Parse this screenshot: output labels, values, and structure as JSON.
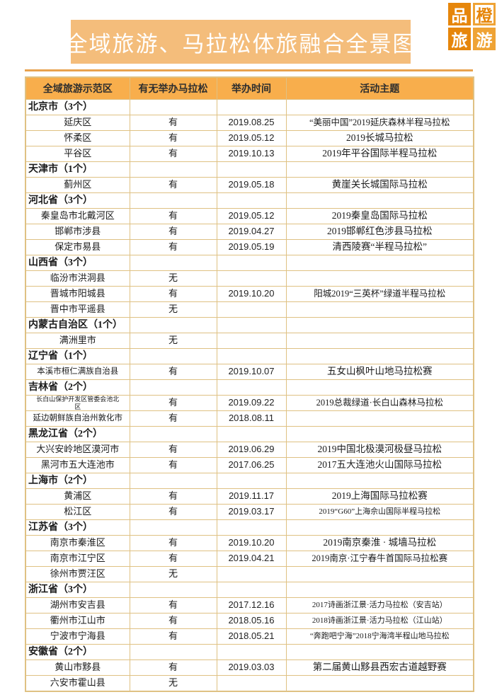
{
  "colors": {
    "banner": "#F4BD7B",
    "divider": "#E8A34F",
    "table_header": "#F8AE4C",
    "border": "#DFC183",
    "logo_dark": "#E6860B",
    "logo_light": "#EFA335"
  },
  "logo": {
    "tiles": [
      "品",
      "橙",
      "旅",
      "游"
    ]
  },
  "header": {
    "title": "全域旅游、马拉松体旅融合全景图"
  },
  "table": {
    "columns": [
      "全域旅游示范区",
      "有无举办马拉松",
      "举办时间",
      "活动主题"
    ],
    "groups": [
      {
        "label": "北京市（3个）",
        "rows": [
          {
            "area": "延庆区",
            "held": "有",
            "date": "2019.08.25",
            "theme": "“美丽中国”2019延庆森林半程马拉松"
          },
          {
            "area": "怀柔区",
            "held": "有",
            "date": "2019.05.12",
            "theme": "2019长城马拉松"
          },
          {
            "area": "平谷区",
            "held": "有",
            "date": "2019.10.13",
            "theme": "2019年平谷国际半程马拉松"
          }
        ]
      },
      {
        "label": "天津市（1个）",
        "rows": [
          {
            "area": "蓟州区",
            "held": "有",
            "date": "2019.05.18",
            "theme": "黄崖关长城国际马拉松"
          }
        ]
      },
      {
        "label": "河北省（3个）",
        "rows": [
          {
            "area": "秦皇岛市北戴河区",
            "held": "有",
            "date": "2019.05.12",
            "theme": "2019秦皇岛国际马拉松"
          },
          {
            "area": "邯郸市涉县",
            "held": "有",
            "date": "2019.04.27",
            "theme": "2019邯郸红色涉县马拉松"
          },
          {
            "area": "保定市易县",
            "held": "有",
            "date": "2019.05.19",
            "theme": "清西陵赛“半程马拉松”"
          }
        ]
      },
      {
        "label": "山西省（3个）",
        "rows": [
          {
            "area": "临汾市洪洞县",
            "held": "无",
            "date": "",
            "theme": ""
          },
          {
            "area": "晋城市阳城县",
            "held": "有",
            "date": "2019.10.20",
            "theme": "阳城2019“三英杯”绿道半程马拉松"
          },
          {
            "area": "晋中市平遥县",
            "held": "无",
            "date": "",
            "theme": ""
          }
        ]
      },
      {
        "label": "内蒙古自治区（1个）",
        "rows": [
          {
            "area": "满洲里市",
            "held": "无",
            "date": "",
            "theme": ""
          }
        ]
      },
      {
        "label": "辽宁省（1个）",
        "rows": [
          {
            "area": "本溪市桓仁满族自治县",
            "held": "有",
            "date": "2019.10.07",
            "theme": "五女山枫叶山地马拉松赛"
          }
        ]
      },
      {
        "label": "吉林省（2个）",
        "rows": [
          {
            "area": "长白山保护开发区管委会池北区",
            "held": "有",
            "date": "2019.09.22",
            "theme": "2019总裁绿道·长白山森林马拉松"
          },
          {
            "area": "延边朝鲜族自治州敦化市",
            "held": "有",
            "date": "2018.08.11",
            "theme": ""
          }
        ]
      },
      {
        "label": "黑龙江省（2个）",
        "rows": [
          {
            "area": "大兴安岭地区漠河市",
            "held": "有",
            "date": "2019.06.29",
            "theme": "2019中国北极漠河极昼马拉松"
          },
          {
            "area": "黑河市五大连池市",
            "held": "有",
            "date": "2017.06.25",
            "theme": "2017五大连池火山国际马拉松"
          }
        ]
      },
      {
        "label": "上海市（2个）",
        "rows": [
          {
            "area": "黄浦区",
            "held": "有",
            "date": "2019.11.17",
            "theme": "2019上海国际马拉松赛"
          },
          {
            "area": "松江区",
            "held": "有",
            "date": "2019.03.17",
            "theme": "2019“G60”上海佘山国际半程马拉松"
          }
        ]
      },
      {
        "label": "江苏省（3个）",
        "rows": [
          {
            "area": "南京市秦淮区",
            "held": "有",
            "date": "2019.10.20",
            "theme": "2019南京秦淮 · 城墙马拉松"
          },
          {
            "area": "南京市江宁区",
            "held": "有",
            "date": "2019.04.21",
            "theme": "2019南京·江宁春牛首国际马拉松赛"
          },
          {
            "area": "徐州市贾汪区",
            "held": "无",
            "date": "",
            "theme": ""
          }
        ]
      },
      {
        "label": "浙江省（3个）",
        "rows": [
          {
            "area": "湖州市安吉县",
            "held": "有",
            "date": "2017.12.16",
            "theme": "2017诗画浙江景·活力马拉松（安吉站）"
          },
          {
            "area": "衢州市江山市",
            "held": "有",
            "date": "2018.05.16",
            "theme": "2018诗画浙江景·活力马拉松（江山站）"
          },
          {
            "area": "宁波市宁海县",
            "held": "有",
            "date": "2018.05.21",
            "theme": "“奔跑吧宁海”2018宁海湾半程山地马拉松"
          }
        ]
      },
      {
        "label": "安徽省（2个）",
        "rows": [
          {
            "area": "黄山市黟县",
            "held": "有",
            "date": "2019.03.03",
            "theme": "第二届黄山黟县西宏古道越野赛"
          },
          {
            "area": "六安市霍山县",
            "held": "无",
            "date": "",
            "theme": ""
          }
        ]
      }
    ]
  }
}
